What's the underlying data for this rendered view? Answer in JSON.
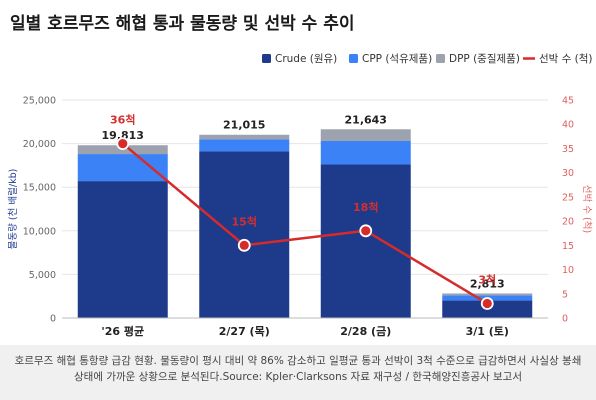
{
  "title": "일별 호르무즈 해협 통과 물동량 및 선박 수 추이",
  "caption": "호르무즈 해협 통항량 급감 현황. 물동량이 평시 대비 약 86% 감소하고 일평균 통과 선박이 3척 수준으로 급감하면서 사실상 봉쇄 상태에 가까운 상황으로 분석된다.Source: Kpler·Clarksons 자료 재구성 / 한국해양진흥공사 보고서",
  "chart_data": {
    "type": "bar",
    "categories": [
      "'26 평균",
      "2/27 (목)",
      "2/28 (금)",
      "3/1 (토)"
    ],
    "series": [
      {
        "name": "Crude (원유)",
        "values": [
          15700,
          19100,
          17600,
          2000
        ],
        "color": "#1e3a8a"
      },
      {
        "name": "CPP (석유제품)",
        "values": [
          3100,
          1400,
          2700,
          600
        ],
        "color": "#3b82f6"
      },
      {
        "name": "DPP (중질제품)",
        "values": [
          1013,
          515,
          1343,
          213
        ],
        "color": "#9ca3af"
      }
    ],
    "totals": [
      "19,813",
      "21,015",
      "21,643",
      "2,813"
    ],
    "line": {
      "name": "선박 수 (척)",
      "values": [
        36,
        15,
        18,
        3
      ],
      "labels": [
        "36척",
        "15척",
        "18척",
        "3척"
      ],
      "color": "#d62b2b"
    },
    "ylabel": "물동량 (천 배럴/kb)",
    "ylabel_right": "선박 수 (척)",
    "ylim": [
      0,
      25000
    ],
    "yticks": [
      "0",
      "5,000",
      "10,000",
      "15,000",
      "20,000",
      "25,000"
    ],
    "ylim_right": [
      0,
      45
    ],
    "yticks_right": [
      "0",
      "5",
      "10",
      "15",
      "20",
      "25",
      "30",
      "35",
      "40",
      "45"
    ],
    "legend_position": "top-right",
    "grid": true
  }
}
